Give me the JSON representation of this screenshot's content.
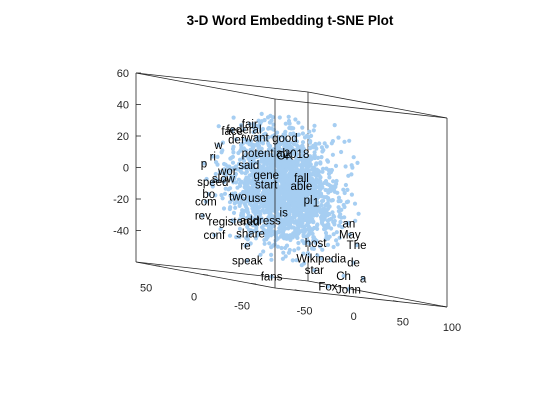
{
  "chart_data": {
    "type": "scatter",
    "dimensions": 3,
    "title": "3-D Word Embedding t-SNE Plot",
    "xlabel": "",
    "ylabel": "",
    "zlabel": "",
    "xlim": [
      -75,
      100
    ],
    "ylim": [
      -75,
      70
    ],
    "zlim": [
      -60,
      60
    ],
    "x_ticks": [
      "-50",
      "0",
      "50",
      "100"
    ],
    "y_ticks": [
      "-50",
      "0",
      "50"
    ],
    "z_ticks": [
      "-40",
      "-20",
      "0",
      "20",
      "40",
      "60"
    ],
    "grid": false,
    "marker_color": "#a6cef2",
    "label_color": "#000000",
    "point_cloud": {
      "approx_points": 2000,
      "x_range": [
        -45,
        55
      ],
      "y_range": [
        -50,
        45
      ],
      "z_range": [
        -45,
        45
      ]
    },
    "labels": [
      {
        "text": "fair",
        "x": -9,
        "y": 19,
        "z": 38
      },
      {
        "text": "federal",
        "x": -12,
        "y": 22,
        "z": 34
      },
      {
        "text": "face",
        "x": -21,
        "y": 25,
        "z": 32
      },
      {
        "text": "want",
        "x": -5,
        "y": 16,
        "z": 30
      },
      {
        "text": "good",
        "x": 16,
        "y": 8,
        "z": 32
      },
      {
        "text": "def",
        "x": -18,
        "y": 24,
        "z": 27
      },
      {
        "text": "2018",
        "x": 24,
        "y": 4,
        "z": 23
      },
      {
        "text": "OK",
        "x": 17,
        "y": 9,
        "z": 21
      },
      {
        "text": "potential",
        "x": -2,
        "y": 12,
        "z": 21
      },
      {
        "text": "w",
        "x": -31,
        "y": 29,
        "z": 22
      },
      {
        "text": "ri",
        "x": -32,
        "y": 34,
        "z": 14
      },
      {
        "text": "said",
        "x": -11,
        "y": 18,
        "z": 12
      },
      {
        "text": "fall",
        "x": 28,
        "y": 3,
        "z": 8
      },
      {
        "text": "p",
        "x": -40,
        "y": 35,
        "z": 9
      },
      {
        "text": "wor",
        "x": -23,
        "y": 28,
        "z": 6
      },
      {
        "text": "gene",
        "x": 1,
        "y": 12,
        "z": 7
      },
      {
        "text": "able",
        "x": 25,
        "y": 0,
        "z": 3
      },
      {
        "text": "slow",
        "x": -27,
        "y": 28,
        "z": 1
      },
      {
        "text": "start",
        "x": -1,
        "y": 10,
        "z": 1
      },
      {
        "text": "speed",
        "x": -33,
        "y": 33,
        "z": -2
      },
      {
        "text": "1",
        "x": 33,
        "y": -7,
        "z": -6
      },
      {
        "text": "pl",
        "x": 23,
        "y": -9,
        "z": -5
      },
      {
        "text": "use",
        "x": -9,
        "y": 11,
        "z": -8
      },
      {
        "text": "two",
        "x": -20,
        "y": 20,
        "z": -9
      },
      {
        "text": "bo",
        "x": -38,
        "y": 32,
        "z": -10
      },
      {
        "text": "com",
        "x": -41,
        "y": 32,
        "z": -15
      },
      {
        "text": "is",
        "x": 7,
        "y": 0,
        "z": -15
      },
      {
        "text": "an",
        "x": 47,
        "y": -27,
        "z": -16
      },
      {
        "text": "rev",
        "x": -46,
        "y": 30,
        "z": -24
      },
      {
        "text": "registered",
        "x": -24,
        "y": 20,
        "z": -25
      },
      {
        "text": "address",
        "x": -7,
        "y": 10,
        "z": -22
      },
      {
        "text": "share",
        "x": -16,
        "y": 11,
        "z": -31
      },
      {
        "text": "May",
        "x": 46,
        "y": -29,
        "z": -23
      },
      {
        "text": "host",
        "x": 20,
        "y": -20,
        "z": -31
      },
      {
        "text": "The",
        "x": 48,
        "y": -34,
        "z": -29
      },
      {
        "text": "conf",
        "x": -45,
        "y": 19,
        "z": -35
      },
      {
        "text": "re",
        "x": -26,
        "y": 6,
        "z": -39
      },
      {
        "text": "Wikipedia",
        "x": 15,
        "y": -31,
        "z": -40
      },
      {
        "text": "de",
        "x": 38,
        "y": -41,
        "z": -40
      },
      {
        "text": "speak",
        "x": -32,
        "y": -2,
        "z": -48
      },
      {
        "text": "star",
        "x": 8,
        "y": -31,
        "z": -48
      },
      {
        "text": "Ch",
        "x": 27,
        "y": -42,
        "z": -49
      },
      {
        "text": "a",
        "x": 41,
        "y": -48,
        "z": -49
      },
      {
        "text": "fans",
        "x": -17,
        "y": -12,
        "z": -56
      },
      {
        "text": "Fox",
        "x": 14,
        "y": -39,
        "z": -57
      },
      {
        "text": "John",
        "x": 28,
        "y": -46,
        "z": -57
      }
    ]
  }
}
